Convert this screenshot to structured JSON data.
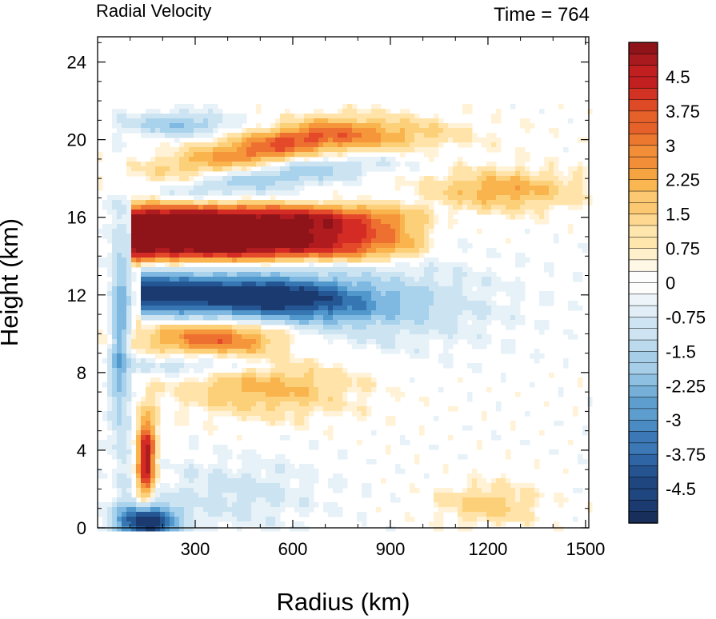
{
  "chart_data": {
    "type": "heatmap",
    "title": "Radial Velocity",
    "time_label": "Time = 764",
    "xlabel": "Radius (km)",
    "ylabel": "Height (km)",
    "xlim": [
      0,
      1510
    ],
    "ylim": [
      0,
      25.3
    ],
    "x_ticks": [
      300,
      600,
      900,
      1200,
      1500
    ],
    "y_ticks": [
      0,
      4,
      8,
      12,
      16,
      20,
      24
    ],
    "colorbar": {
      "min": -5.25,
      "max": 5.25,
      "labels": [
        "4.5",
        "3.75",
        "3",
        "2.25",
        "1.5",
        "0.75",
        "0",
        "-0.75",
        "-1.5",
        "-2.25",
        "-3",
        "-3.75",
        "-4.5"
      ],
      "label_values": [
        4.5,
        3.75,
        3,
        2.25,
        1.5,
        0.75,
        0,
        -0.75,
        -1.5,
        -2.25,
        -3,
        -3.75,
        -4.5
      ],
      "colors": [
        "#f5f5f5",
        "#fff2d6",
        "#ffe3a8",
        "#fcd079",
        "#f9b44e",
        "#f5963a",
        "#ee7030",
        "#e4492a",
        "#d42c25",
        "#b01b1f",
        "#8f1419",
        "#e6f1f8",
        "#cce4f1",
        "#a9d2ec",
        "#7fb8e0",
        "#5198cc",
        "#3676b3",
        "#235692",
        "#1b3a70"
      ]
    },
    "features": [
      {
        "kind": "outflow_jet",
        "sign": "positive",
        "value": 5.5,
        "r_range": [
          110,
          1060
        ],
        "z_center": 15.2,
        "thickness_km": 2.6
      },
      {
        "kind": "inflow_layer",
        "sign": "negative",
        "value": -5.2,
        "r_range": [
          130,
          740
        ],
        "z_center": 12.0,
        "thickness_km": 1.6
      },
      {
        "kind": "upper_band",
        "sign": "positive",
        "value": 3.0,
        "r_range": [
          200,
          1000
        ],
        "z_center": 20.0
      },
      {
        "kind": "upper_band",
        "sign": "positive",
        "value": 1.8,
        "r_range": [
          1000,
          1500
        ],
        "z_center": 17.6
      },
      {
        "kind": "mid_band",
        "sign": "positive",
        "value": 3.0,
        "r_range": [
          140,
          580
        ],
        "z_center": 9.8
      },
      {
        "kind": "boundary_inflow",
        "sign": "negative",
        "value": -5.5,
        "r_range": [
          60,
          280
        ],
        "z_center": 0.5
      }
    ]
  }
}
